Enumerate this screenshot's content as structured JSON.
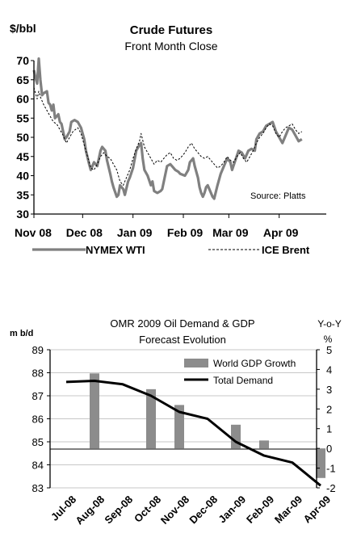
{
  "chart_data": [
    {
      "type": "line",
      "title": "Crude Futures",
      "subtitle": "Front Month Close",
      "ylabel": "$/bbl",
      "ylim": [
        30,
        70
      ],
      "yticks": [
        30,
        35,
        40,
        45,
        50,
        55,
        60,
        65,
        70
      ],
      "xlim": [
        "2008-11-01",
        "2009-04-30"
      ],
      "xtick_labels": [
        "Nov 08",
        "Dec 08",
        "Jan 09",
        "Feb 09",
        "Mar 09",
        "Apr 09"
      ],
      "xtick_dates": [
        "2008-11-01",
        "2008-12-01",
        "2009-01-01",
        "2009-02-01",
        "2009-03-01",
        "2009-04-01"
      ],
      "source_note": "Source: Platts",
      "grid": false,
      "legend": "bottom",
      "series": [
        {
          "name": "NYMEX WTI",
          "color": "#808080",
          "style": "solid",
          "points": [
            [
              "2008-11-01",
              67.5
            ],
            [
              "2008-11-02",
              65.5
            ],
            [
              "2008-11-03",
              64.0
            ],
            [
              "2008-11-04",
              70.5
            ],
            [
              "2008-11-05",
              65.0
            ],
            [
              "2008-11-06",
              61.0
            ],
            [
              "2008-11-07",
              61.5
            ],
            [
              "2008-11-09",
              62.0
            ],
            [
              "2008-11-10",
              59.0
            ],
            [
              "2008-11-11",
              58.5
            ],
            [
              "2008-11-12",
              57.0
            ],
            [
              "2008-11-13",
              58.5
            ],
            [
              "2008-11-14",
              55.0
            ],
            [
              "2008-11-16",
              56.0
            ],
            [
              "2008-11-17",
              54.0
            ],
            [
              "2008-11-18",
              53.5
            ],
            [
              "2008-11-19",
              51.5
            ],
            [
              "2008-11-20",
              49.5
            ],
            [
              "2008-11-21",
              50.0
            ],
            [
              "2008-11-23",
              51.5
            ],
            [
              "2008-11-24",
              54.0
            ],
            [
              "2008-11-26",
              54.5
            ],
            [
              "2008-11-28",
              54.0
            ],
            [
              "2008-11-30",
              52.5
            ],
            [
              "2008-12-02",
              49.5
            ],
            [
              "2008-12-03",
              46.5
            ],
            [
              "2008-12-05",
              43.0
            ],
            [
              "2008-12-06",
              41.5
            ],
            [
              "2008-12-08",
              43.5
            ],
            [
              "2008-12-10",
              42.5
            ],
            [
              "2008-12-12",
              46.5
            ],
            [
              "2008-12-13",
              47.5
            ],
            [
              "2008-12-15",
              46.5
            ],
            [
              "2008-12-16",
              44.0
            ],
            [
              "2008-12-18",
              40.5
            ],
            [
              "2008-12-19",
              38.5
            ],
            [
              "2008-12-20",
              37.0
            ],
            [
              "2008-12-22",
              34.5
            ],
            [
              "2008-12-23",
              35.0
            ],
            [
              "2008-12-24",
              37.5
            ],
            [
              "2008-12-26",
              36.5
            ],
            [
              "2008-12-27",
              35.0
            ],
            [
              "2008-12-29",
              38.5
            ],
            [
              "2008-12-30",
              39.5
            ],
            [
              "2009-01-01",
              42.0
            ],
            [
              "2009-01-03",
              46.5
            ],
            [
              "2009-01-05",
              48.0
            ],
            [
              "2009-01-06",
              48.5
            ],
            [
              "2009-01-07",
              44.5
            ],
            [
              "2009-01-08",
              41.5
            ],
            [
              "2009-01-10",
              40.0
            ],
            [
              "2009-01-12",
              37.5
            ],
            [
              "2009-01-13",
              38.5
            ],
            [
              "2009-01-14",
              36.0
            ],
            [
              "2009-01-16",
              35.5
            ],
            [
              "2009-01-18",
              36.0
            ],
            [
              "2009-01-19",
              36.5
            ],
            [
              "2009-01-21",
              40.5
            ],
            [
              "2009-01-22",
              42.5
            ],
            [
              "2009-01-24",
              43.0
            ],
            [
              "2009-01-26",
              42.0
            ],
            [
              "2009-01-27",
              41.5
            ],
            [
              "2009-01-29",
              41.0
            ],
            [
              "2009-01-30",
              40.5
            ],
            [
              "2009-02-02",
              40.0
            ],
            [
              "2009-02-04",
              41.5
            ],
            [
              "2009-02-05",
              43.5
            ],
            [
              "2009-02-07",
              44.5
            ],
            [
              "2009-02-08",
              42.5
            ],
            [
              "2009-02-10",
              39.5
            ],
            [
              "2009-02-11",
              37.0
            ],
            [
              "2009-02-12",
              35.5
            ],
            [
              "2009-02-13",
              34.5
            ],
            [
              "2009-02-14",
              35.5
            ],
            [
              "2009-02-15",
              37.0
            ],
            [
              "2009-02-16",
              37.5
            ],
            [
              "2009-02-17",
              36.5
            ],
            [
              "2009-02-18",
              35.5
            ],
            [
              "2009-02-19",
              34.5
            ],
            [
              "2009-02-20",
              34.0
            ],
            [
              "2009-02-22",
              37.5
            ],
            [
              "2009-02-24",
              40.5
            ],
            [
              "2009-02-26",
              42.5
            ],
            [
              "2009-02-28",
              44.5
            ],
            [
              "2009-03-02",
              43.5
            ],
            [
              "2009-03-03",
              41.5
            ],
            [
              "2009-03-05",
              44.0
            ],
            [
              "2009-03-07",
              46.5
            ],
            [
              "2009-03-09",
              46.0
            ],
            [
              "2009-03-11",
              44.5
            ],
            [
              "2009-03-13",
              46.5
            ],
            [
              "2009-03-15",
              47.0
            ],
            [
              "2009-03-17",
              46.5
            ],
            [
              "2009-03-18",
              49.5
            ],
            [
              "2009-03-20",
              51.0
            ],
            [
              "2009-03-22",
              51.5
            ],
            [
              "2009-03-24",
              53.0
            ],
            [
              "2009-03-26",
              53.5
            ],
            [
              "2009-03-28",
              54.0
            ],
            [
              "2009-03-30",
              51.5
            ],
            [
              "2009-04-01",
              50.0
            ],
            [
              "2009-04-03",
              48.5
            ],
            [
              "2009-04-05",
              50.5
            ],
            [
              "2009-04-07",
              52.5
            ],
            [
              "2009-04-09",
              52.0
            ],
            [
              "2009-04-11",
              50.5
            ],
            [
              "2009-04-13",
              49.0
            ],
            [
              "2009-04-15",
              49.5
            ]
          ]
        },
        {
          "name": "ICE Brent",
          "color": "#000000",
          "style": "dotted",
          "points": [
            [
              "2008-11-01",
              63.0
            ],
            [
              "2008-11-02",
              61.5
            ],
            [
              "2008-11-03",
              60.0
            ],
            [
              "2008-11-04",
              62.0
            ],
            [
              "2008-11-05",
              60.5
            ],
            [
              "2008-11-07",
              58.5
            ],
            [
              "2008-11-09",
              57.0
            ],
            [
              "2008-11-11",
              55.5
            ],
            [
              "2008-11-13",
              54.0
            ],
            [
              "2008-11-15",
              53.5
            ],
            [
              "2008-11-17",
              52.0
            ],
            [
              "2008-11-19",
              50.5
            ],
            [
              "2008-11-21",
              48.5
            ],
            [
              "2008-11-23",
              50.0
            ],
            [
              "2008-11-25",
              51.5
            ],
            [
              "2008-11-28",
              52.5
            ],
            [
              "2008-11-30",
              51.0
            ],
            [
              "2008-12-02",
              48.0
            ],
            [
              "2008-12-04",
              45.0
            ],
            [
              "2008-12-06",
              42.0
            ],
            [
              "2008-12-08",
              41.5
            ],
            [
              "2008-12-10",
              43.0
            ],
            [
              "2008-12-12",
              45.0
            ],
            [
              "2008-12-14",
              46.0
            ],
            [
              "2008-12-16",
              45.0
            ],
            [
              "2008-12-18",
              44.5
            ],
            [
              "2008-12-20",
              43.0
            ],
            [
              "2008-12-22",
              41.5
            ],
            [
              "2008-12-24",
              38.5
            ],
            [
              "2008-12-26",
              37.5
            ],
            [
              "2008-12-28",
              39.5
            ],
            [
              "2008-12-30",
              41.5
            ],
            [
              "2009-01-01",
              44.5
            ],
            [
              "2009-01-03",
              47.0
            ],
            [
              "2009-01-05",
              49.0
            ],
            [
              "2009-01-06",
              51.0
            ],
            [
              "2009-01-08",
              47.5
            ],
            [
              "2009-01-10",
              46.0
            ],
            [
              "2009-01-12",
              44.5
            ],
            [
              "2009-01-14",
              43.0
            ],
            [
              "2009-01-16",
              44.0
            ],
            [
              "2009-01-18",
              43.5
            ],
            [
              "2009-01-20",
              44.5
            ],
            [
              "2009-01-22",
              45.5
            ],
            [
              "2009-01-24",
              46.0
            ],
            [
              "2009-01-26",
              44.5
            ],
            [
              "2009-01-28",
              44.0
            ],
            [
              "2009-01-30",
              44.5
            ],
            [
              "2009-02-02",
              46.0
            ],
            [
              "2009-02-04",
              47.5
            ],
            [
              "2009-02-06",
              48.5
            ],
            [
              "2009-02-08",
              47.0
            ],
            [
              "2009-02-10",
              46.0
            ],
            [
              "2009-02-12",
              45.0
            ],
            [
              "2009-02-14",
              44.5
            ],
            [
              "2009-02-16",
              45.0
            ],
            [
              "2009-02-18",
              44.0
            ],
            [
              "2009-02-20",
              43.0
            ],
            [
              "2009-02-22",
              42.0
            ],
            [
              "2009-02-24",
              42.5
            ],
            [
              "2009-02-26",
              43.5
            ],
            [
              "2009-02-28",
              45.0
            ],
            [
              "2009-03-02",
              44.0
            ],
            [
              "2009-03-04",
              43.5
            ],
            [
              "2009-03-06",
              45.0
            ],
            [
              "2009-03-08",
              46.0
            ],
            [
              "2009-03-10",
              44.5
            ],
            [
              "2009-03-12",
              43.5
            ],
            [
              "2009-03-14",
              45.0
            ],
            [
              "2009-03-16",
              46.5
            ],
            [
              "2009-03-18",
              48.5
            ],
            [
              "2009-03-20",
              50.0
            ],
            [
              "2009-03-22",
              51.0
            ],
            [
              "2009-03-24",
              52.5
            ],
            [
              "2009-03-26",
              53.5
            ],
            [
              "2009-03-28",
              53.0
            ],
            [
              "2009-03-30",
              51.0
            ],
            [
              "2009-04-01",
              50.0
            ],
            [
              "2009-04-03",
              51.5
            ],
            [
              "2009-04-05",
              52.5
            ],
            [
              "2009-04-07",
              53.0
            ],
            [
              "2009-04-09",
              53.5
            ],
            [
              "2009-04-11",
              52.0
            ],
            [
              "2009-04-13",
              51.0
            ],
            [
              "2009-04-15",
              51.5
            ]
          ]
        }
      ]
    },
    {
      "type": "bar",
      "title_lines": [
        "OMR 2009 Oil Demand & GDP",
        "Forecast Evolution"
      ],
      "ylabel": "m b/d",
      "y2label_lines": [
        "Y-o-Y",
        "%"
      ],
      "ylim": [
        83,
        89
      ],
      "yticks": [
        83,
        84,
        85,
        86,
        87,
        88,
        89
      ],
      "y2lim": [
        -2,
        5
      ],
      "y2ticks": [
        -2,
        -1,
        0,
        1,
        2,
        3,
        4,
        5
      ],
      "categories": [
        "Jul-08",
        "Aug-08",
        "Sep-08",
        "Oct-08",
        "Nov-08",
        "Dec-08",
        "Jan-09",
        "Feb-09",
        "Mar-09",
        "Apr-09"
      ],
      "grid": true,
      "legend": "top-right",
      "bar_series": {
        "name": "World GDP Growth",
        "axis": "right",
        "color": "#8c8c8c",
        "values": [
          null,
          3.8,
          null,
          3.0,
          2.2,
          null,
          1.2,
          0.4,
          null,
          -1.5
        ]
      },
      "line_series": {
        "name": "Total Demand",
        "axis": "left",
        "color": "#000000",
        "values": [
          87.6,
          87.65,
          87.5,
          87.0,
          86.3,
          86.0,
          85.0,
          84.4,
          84.1,
          83.1
        ]
      }
    }
  ]
}
